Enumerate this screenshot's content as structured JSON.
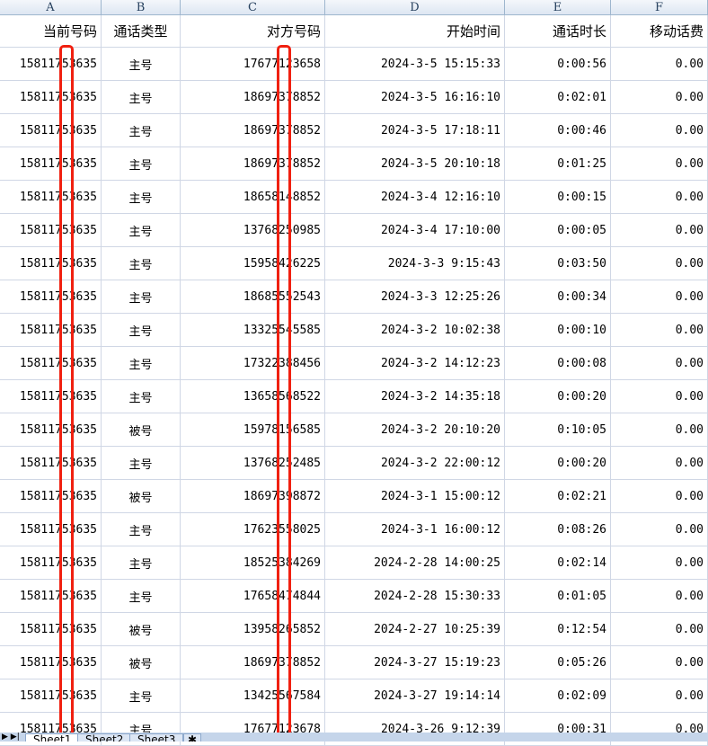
{
  "columns": [
    "A",
    "B",
    "C",
    "D",
    "E",
    "F"
  ],
  "headers": [
    "当前号码",
    "通话类型",
    "对方号码",
    "开始时间",
    "通话时长",
    "移动话费"
  ],
  "rows": [
    [
      "15811753635",
      "主号",
      "17677123658",
      "2024-3-5 15:15:33",
      "0:00:56",
      "0.00"
    ],
    [
      "15811753635",
      "主号",
      "18697378852",
      "2024-3-5 16:16:10",
      "0:02:01",
      "0.00"
    ],
    [
      "15811753635",
      "主号",
      "18697378852",
      "2024-3-5 17:18:11",
      "0:00:46",
      "0.00"
    ],
    [
      "15811753635",
      "主号",
      "18697378852",
      "2024-3-5 20:10:18",
      "0:01:25",
      "0.00"
    ],
    [
      "15811753635",
      "主号",
      "18658148852",
      "2024-3-4 12:16:10",
      "0:00:15",
      "0.00"
    ],
    [
      "15811753635",
      "主号",
      "13768250985",
      "2024-3-4 17:10:00",
      "0:00:05",
      "0.00"
    ],
    [
      "15811753635",
      "主号",
      "15958426225",
      "2024-3-3 9:15:43",
      "0:03:50",
      "0.00"
    ],
    [
      "15811753635",
      "主号",
      "18685552543",
      "2024-3-3 12:25:26",
      "0:00:34",
      "0.00"
    ],
    [
      "15811753635",
      "主号",
      "13325545585",
      "2024-3-2 10:02:38",
      "0:00:10",
      "0.00"
    ],
    [
      "15811753635",
      "主号",
      "17322388456",
      "2024-3-2 14:12:23",
      "0:00:08",
      "0.00"
    ],
    [
      "15811753635",
      "主号",
      "13658568522",
      "2024-3-2 14:35:18",
      "0:00:20",
      "0.00"
    ],
    [
      "15811753635",
      "被号",
      "15978156585",
      "2024-3-2 20:10:20",
      "0:10:05",
      "0.00"
    ],
    [
      "15811753635",
      "主号",
      "13768252485",
      "2024-3-2 22:00:12",
      "0:00:20",
      "0.00"
    ],
    [
      "15811753635",
      "被号",
      "18697398872",
      "2024-3-1 15:00:12",
      "0:02:21",
      "0.00"
    ],
    [
      "15811753635",
      "主号",
      "17623558025",
      "2024-3-1 16:00:12",
      "0:08:26",
      "0.00"
    ],
    [
      "15811753635",
      "主号",
      "18525384269",
      "2024-2-28 14:00:25",
      "0:02:14",
      "0.00"
    ],
    [
      "15811753635",
      "主号",
      "17658474844",
      "2024-2-28 15:30:33",
      "0:01:05",
      "0.00"
    ],
    [
      "15811753635",
      "被号",
      "13958265852",
      "2024-2-27 10:25:39",
      "0:12:54",
      "0.00"
    ],
    [
      "15811753635",
      "被号",
      "18697378852",
      "2024-3-27 15:19:23",
      "0:05:26",
      "0.00"
    ],
    [
      "15811753635",
      "主号",
      "13425567584",
      "2024-3-27 19:14:14",
      "0:02:09",
      "0.00"
    ],
    [
      "15811753635",
      "主号",
      "17677123678",
      "2024-3-26 9:12:39",
      "0:00:31",
      "0.00"
    ]
  ],
  "sheet_tabs": [
    "Sheet1",
    "Sheet2",
    "Sheet3"
  ],
  "redaction_color": "#f02010"
}
